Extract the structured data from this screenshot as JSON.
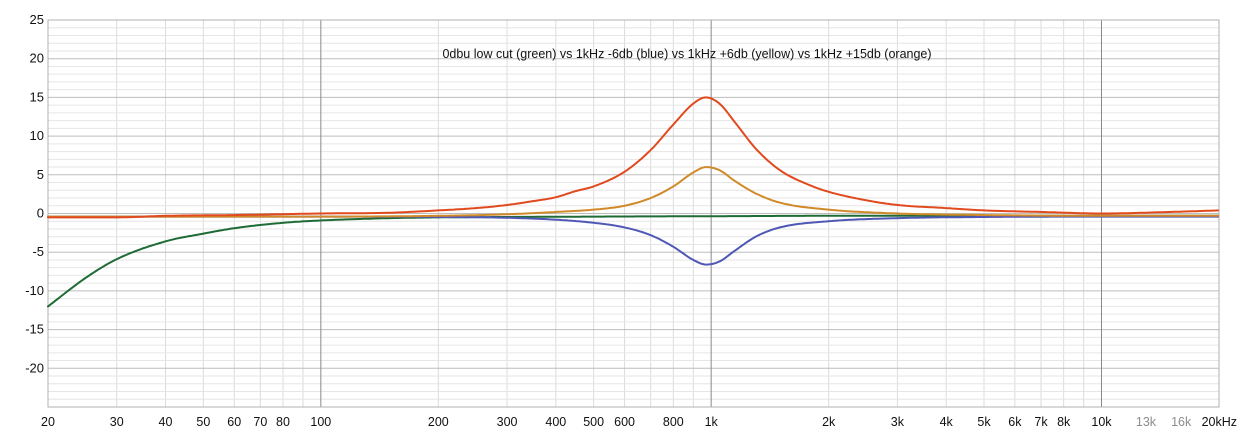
{
  "chart_data": {
    "type": "line",
    "title": "0dbu low cut (green) vs 1kHz -6db (blue) vs 1kHz +6db (yellow) vs 1kHz +15db (orange)",
    "xlabel": "",
    "ylabel": "",
    "x_scale": "log",
    "xlim": [
      20,
      20000
    ],
    "ylim": [
      -25,
      25
    ],
    "grid": true,
    "y_ticks": [
      {
        "value": 25,
        "label": "25"
      },
      {
        "value": 20,
        "label": "20"
      },
      {
        "value": 15,
        "label": "15"
      },
      {
        "value": 10,
        "label": "10"
      },
      {
        "value": 5,
        "label": "5"
      },
      {
        "value": 0,
        "label": "0"
      },
      {
        "value": -5,
        "label": "-5"
      },
      {
        "value": -10,
        "label": "-10"
      },
      {
        "value": -15,
        "label": "-15"
      },
      {
        "value": -20,
        "label": "-20"
      }
    ],
    "x_ticks": [
      {
        "value": 20,
        "label": "20"
      },
      {
        "value": 30,
        "label": "30"
      },
      {
        "value": 40,
        "label": "40"
      },
      {
        "value": 50,
        "label": "50"
      },
      {
        "value": 60,
        "label": "60"
      },
      {
        "value": 70,
        "label": "70"
      },
      {
        "value": 80,
        "label": "80"
      },
      {
        "value": 100,
        "label": "100"
      },
      {
        "value": 200,
        "label": "200"
      },
      {
        "value": 300,
        "label": "300"
      },
      {
        "value": 400,
        "label": "400"
      },
      {
        "value": 500,
        "label": "500"
      },
      {
        "value": 600,
        "label": "600"
      },
      {
        "value": 800,
        "label": "800"
      },
      {
        "value": 1000,
        "label": "1k"
      },
      {
        "value": 2000,
        "label": "2k"
      },
      {
        "value": 3000,
        "label": "3k"
      },
      {
        "value": 4000,
        "label": "4k"
      },
      {
        "value": 5000,
        "label": "5k"
      },
      {
        "value": 6000,
        "label": "6k"
      },
      {
        "value": 7000,
        "label": "7k"
      },
      {
        "value": 8000,
        "label": "8k"
      },
      {
        "value": 10000,
        "label": "10k"
      },
      {
        "value": 13000,
        "label": "13k",
        "muted": true
      },
      {
        "value": 16000,
        "label": "16k",
        "muted": true
      },
      {
        "value": 20000,
        "label": "20kHz"
      }
    ],
    "series": [
      {
        "name": "0dbu low cut (green)",
        "color": "#1e6b36",
        "x": [
          20,
          25,
          30,
          40,
          50,
          60,
          80,
          100,
          150,
          200,
          300,
          500,
          1000,
          2000,
          5000,
          10000,
          20000
        ],
        "y": [
          -12,
          -8.3,
          -5.9,
          -3.6,
          -2.6,
          -1.9,
          -1.2,
          -0.9,
          -0.6,
          -0.5,
          -0.45,
          -0.4,
          -0.35,
          -0.3,
          -0.3,
          -0.3,
          -0.3
        ]
      },
      {
        "name": "1kHz -6db (blue)",
        "color": "#4f58b5",
        "x": [
          20,
          100,
          200,
          300,
          400,
          500,
          600,
          700,
          800,
          900,
          970,
          1050,
          1150,
          1300,
          1500,
          2000,
          3000,
          5000,
          10000,
          20000
        ],
        "y": [
          -0.4,
          -0.4,
          -0.45,
          -0.55,
          -0.8,
          -1.2,
          -1.8,
          -2.8,
          -4.3,
          -6.0,
          -6.6,
          -6.2,
          -4.8,
          -3.0,
          -1.8,
          -1.0,
          -0.6,
          -0.45,
          -0.4,
          -0.4
        ]
      },
      {
        "name": "1kHz +6db (yellow)",
        "color": "#d08a2a",
        "x": [
          20,
          100,
          200,
          300,
          400,
          500,
          600,
          700,
          800,
          900,
          970,
          1050,
          1150,
          1300,
          1500,
          2000,
          3000,
          5000,
          10000,
          20000
        ],
        "y": [
          -0.4,
          -0.4,
          -0.3,
          -0.1,
          0.2,
          0.5,
          1.0,
          2.0,
          3.5,
          5.3,
          6.0,
          5.6,
          4.2,
          2.6,
          1.4,
          0.5,
          0.0,
          -0.2,
          -0.3,
          -0.3
        ]
      },
      {
        "name": "1kHz +15db (orange)",
        "color": "#e04a1e",
        "x": [
          20,
          30,
          40,
          60,
          100,
          150,
          200,
          250,
          300,
          350,
          400,
          450,
          500,
          600,
          700,
          800,
          900,
          970,
          1050,
          1150,
          1300,
          1500,
          1800,
          2000,
          2500,
          3000,
          4000,
          5000,
          7000,
          10000,
          15000,
          20000
        ],
        "y": [
          -0.5,
          -0.5,
          -0.3,
          -0.2,
          0.0,
          0.1,
          0.4,
          0.7,
          1.1,
          1.6,
          2.1,
          2.9,
          3.5,
          5.4,
          8.2,
          11.5,
          14.2,
          15.0,
          14.2,
          11.8,
          8.4,
          5.6,
          3.6,
          2.8,
          1.7,
          1.1,
          0.7,
          0.4,
          0.2,
          0.0,
          0.2,
          0.4
        ]
      }
    ]
  }
}
